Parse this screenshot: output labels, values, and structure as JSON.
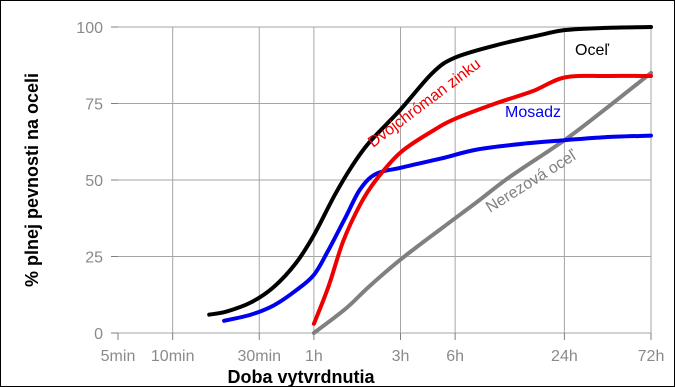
{
  "chart_data": {
    "type": "line",
    "xlabel": "Doba vytvrdnutia",
    "ylabel": "% plnej pevnosti na oceli",
    "x_scale": "log",
    "x_unit": "hours",
    "xlim": [
      0.0833,
      72
    ],
    "ylim": [
      0,
      100
    ],
    "grid": true,
    "x_ticks": [
      {
        "value": 0.0833,
        "label": "5min"
      },
      {
        "value": 0.1667,
        "label": "10min"
      },
      {
        "value": 0.5,
        "label": "30min"
      },
      {
        "value": 1,
        "label": "1h"
      },
      {
        "value": 3,
        "label": "3h"
      },
      {
        "value": 6,
        "label": "6h"
      },
      {
        "value": 24,
        "label": "24h"
      },
      {
        "value": 72,
        "label": "72h"
      }
    ],
    "y_ticks": [
      {
        "value": 0,
        "label": "0"
      },
      {
        "value": 25,
        "label": "25"
      },
      {
        "value": 50,
        "label": "50"
      },
      {
        "value": 75,
        "label": "75"
      },
      {
        "value": 100,
        "label": "100"
      }
    ],
    "series": [
      {
        "name": "Oceľ",
        "color": "#000000",
        "points": [
          [
            0.265,
            6
          ],
          [
            0.33,
            7
          ],
          [
            0.45,
            10
          ],
          [
            0.6,
            15
          ],
          [
            0.8,
            23
          ],
          [
            1.0,
            32
          ],
          [
            1.3,
            45
          ],
          [
            1.6,
            54
          ],
          [
            2.0,
            62
          ],
          [
            3.0,
            73
          ],
          [
            4.5,
            85
          ],
          [
            6.0,
            90
          ],
          [
            10,
            94
          ],
          [
            18,
            97.5
          ],
          [
            24,
            99
          ],
          [
            40,
            99.7
          ],
          [
            72,
            100
          ]
        ]
      },
      {
        "name": "Dvojchróman zinku",
        "color": "#ee0000",
        "points": [
          [
            1.0,
            3
          ],
          [
            1.2,
            15
          ],
          [
            1.45,
            30
          ],
          [
            1.8,
            42
          ],
          [
            2.2,
            50
          ],
          [
            3.0,
            59
          ],
          [
            4.5,
            66
          ],
          [
            6.0,
            70
          ],
          [
            10,
            75
          ],
          [
            16,
            79
          ],
          [
            24,
            83.5
          ],
          [
            40,
            84
          ],
          [
            72,
            84
          ]
        ]
      },
      {
        "name": "Mosadz",
        "color": "#0000ee",
        "points": [
          [
            0.32,
            4
          ],
          [
            0.45,
            6
          ],
          [
            0.6,
            9
          ],
          [
            0.8,
            14
          ],
          [
            1.0,
            19
          ],
          [
            1.2,
            27
          ],
          [
            1.5,
            38
          ],
          [
            1.8,
            47
          ],
          [
            2.2,
            52
          ],
          [
            3.0,
            54
          ],
          [
            5.0,
            57
          ],
          [
            8.0,
            60
          ],
          [
            15,
            62
          ],
          [
            24,
            63
          ],
          [
            40,
            64
          ],
          [
            72,
            64.5
          ]
        ]
      },
      {
        "name": "Nerezová oceľ",
        "color": "#808080",
        "points": [
          [
            1.0,
            0
          ],
          [
            1.5,
            8
          ],
          [
            2.0,
            15
          ],
          [
            3.0,
            24
          ],
          [
            5.0,
            34
          ],
          [
            8.0,
            43
          ],
          [
            12,
            51
          ],
          [
            24,
            63
          ],
          [
            40,
            73
          ],
          [
            72,
            85
          ]
        ]
      }
    ],
    "annotations": [
      {
        "text": "Oceľ",
        "color": "#000000"
      },
      {
        "text": "Dvojchróman zinku",
        "color": "#ee0000"
      },
      {
        "text": "Mosadz",
        "color": "#0000ee"
      },
      {
        "text": "Nerezová oceľ",
        "color": "#808080"
      }
    ]
  }
}
